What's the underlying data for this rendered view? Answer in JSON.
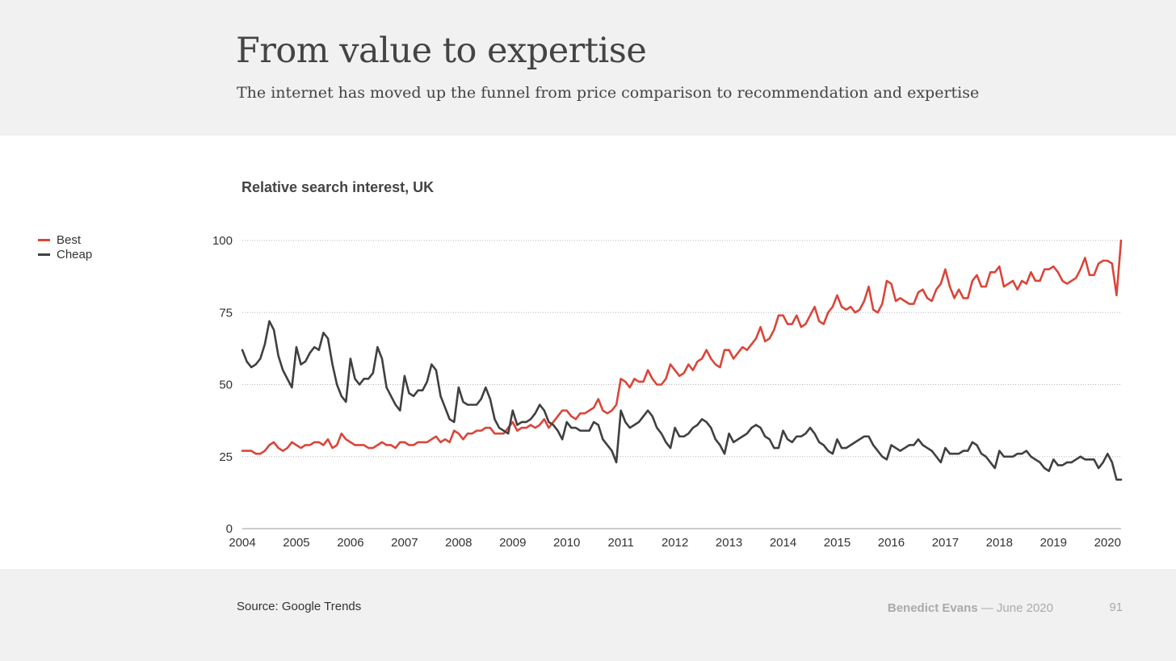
{
  "slide": {
    "title": "From value to expertise",
    "subtitle": "The internet has moved up the funnel from price comparison to recommendation and expertise",
    "source": "Source: Google Trends",
    "author": "Benedict Evans",
    "separator": "—",
    "date": "June 2020",
    "page_number": "91"
  },
  "colors": {
    "best": "#d9463a",
    "cheap": "#404040",
    "grid": "#b5b5b5",
    "axis": "#999999"
  },
  "chart_data": {
    "type": "line",
    "title": "Relative search interest, UK",
    "xlabel": "",
    "ylabel": "",
    "x_start_year": 2004,
    "x_interval": "monthly",
    "xlim": [
      2004,
      2020.25
    ],
    "ylim": [
      0,
      100
    ],
    "yticks": [
      0,
      25,
      50,
      75,
      100
    ],
    "xticks": [
      "2004",
      "2005",
      "2006",
      "2007",
      "2008",
      "2009",
      "2010",
      "2011",
      "2012",
      "2013",
      "2014",
      "2015",
      "2016",
      "2017",
      "2018",
      "2019",
      "2020"
    ],
    "grid": true,
    "legend_position": "left",
    "series": [
      {
        "name": "Best",
        "color": "#d9463a",
        "values": [
          27,
          27,
          27,
          26,
          26,
          27,
          29,
          30,
          28,
          27,
          28,
          30,
          29,
          28,
          29,
          29,
          30,
          30,
          29,
          31,
          28,
          29,
          33,
          31,
          30,
          29,
          29,
          29,
          28,
          28,
          29,
          30,
          29,
          29,
          28,
          30,
          30,
          29,
          29,
          30,
          30,
          30,
          31,
          32,
          30,
          31,
          30,
          34,
          33,
          31,
          33,
          33,
          34,
          34,
          35,
          35,
          33,
          33,
          33,
          35,
          37,
          34,
          35,
          35,
          36,
          35,
          36,
          38,
          35,
          37,
          39,
          41,
          41,
          39,
          38,
          40,
          40,
          41,
          42,
          45,
          41,
          40,
          41,
          43,
          52,
          51,
          49,
          52,
          51,
          51,
          55,
          52,
          50,
          50,
          52,
          57,
          55,
          53,
          54,
          57,
          55,
          58,
          59,
          62,
          59,
          57,
          56,
          62,
          62,
          59,
          61,
          63,
          62,
          64,
          66,
          70,
          65,
          66,
          69,
          74,
          74,
          71,
          71,
          74,
          70,
          71,
          74,
          77,
          72,
          71,
          75,
          77,
          81,
          77,
          76,
          77,
          75,
          76,
          79,
          84,
          76,
          75,
          78,
          86,
          85,
          79,
          80,
          79,
          78,
          78,
          82,
          83,
          80,
          79,
          83,
          85,
          90,
          84,
          80,
          83,
          80,
          80,
          86,
          88,
          84,
          84,
          89,
          89,
          91,
          84,
          85,
          86,
          83,
          86,
          85,
          89,
          86,
          86,
          90,
          90,
          91,
          89,
          86,
          85,
          86,
          87,
          90,
          94,
          88,
          88,
          92,
          93,
          93,
          92,
          81,
          100
        ]
      },
      {
        "name": "Cheap",
        "color": "#404040",
        "values": [
          62,
          58,
          56,
          57,
          59,
          64,
          72,
          69,
          60,
          55,
          52,
          49,
          63,
          57,
          58,
          61,
          63,
          62,
          68,
          66,
          57,
          50,
          46,
          44,
          59,
          52,
          50,
          52,
          52,
          54,
          63,
          59,
          49,
          46,
          43,
          41,
          53,
          47,
          46,
          48,
          48,
          51,
          57,
          55,
          46,
          42,
          38,
          37,
          49,
          44,
          43,
          43,
          43,
          45,
          49,
          45,
          38,
          35,
          34,
          33,
          41,
          36,
          37,
          37,
          38,
          40,
          43,
          41,
          37,
          36,
          34,
          31,
          37,
          35,
          35,
          34,
          34,
          34,
          37,
          36,
          31,
          29,
          27,
          23,
          41,
          37,
          35,
          36,
          37,
          39,
          41,
          39,
          35,
          33,
          30,
          28,
          35,
          32,
          32,
          33,
          35,
          36,
          38,
          37,
          35,
          31,
          29,
          26,
          33,
          30,
          31,
          32,
          33,
          35,
          36,
          35,
          32,
          31,
          28,
          28,
          34,
          31,
          30,
          32,
          32,
          33,
          35,
          33,
          30,
          29,
          27,
          26,
          31,
          28,
          28,
          29,
          30,
          31,
          32,
          32,
          29,
          27,
          25,
          24,
          29,
          28,
          27,
          28,
          29,
          29,
          31,
          29,
          28,
          27,
          25,
          23,
          28,
          26,
          26,
          26,
          27,
          27,
          30,
          29,
          26,
          25,
          23,
          21,
          27,
          25,
          25,
          25,
          26,
          26,
          27,
          25,
          24,
          23,
          21,
          20,
          24,
          22,
          22,
          23,
          23,
          24,
          25,
          24,
          24,
          24,
          21,
          23,
          26,
          23,
          17,
          17
        ]
      }
    ]
  }
}
